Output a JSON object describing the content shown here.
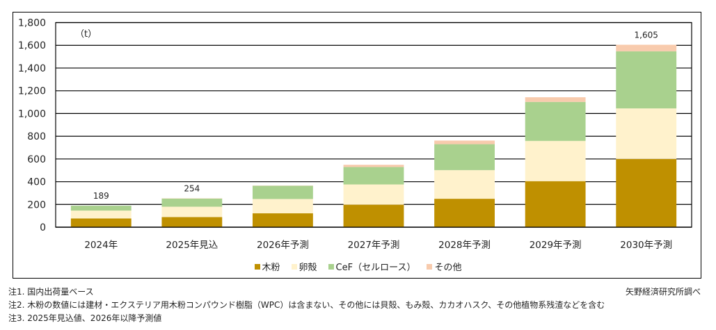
{
  "chart_data": {
    "type": "bar",
    "stacked": true,
    "unit_label": "（t）",
    "categories": [
      "2024年",
      "2025年見込",
      "2026年予測",
      "2027年予測",
      "2028年予測",
      "2029年予測",
      "2030年予測"
    ],
    "series": [
      {
        "name": "木粉",
        "color": "#BF9000",
        "values": [
          77,
          89,
          122,
          198,
          250,
          405,
          600
        ]
      },
      {
        "name": "卵殻",
        "color": "#FFF2CC",
        "values": [
          69,
          91,
          126,
          178,
          252,
          354,
          445
        ]
      },
      {
        "name": "CeF（セルロース）",
        "color": "#A9D18E",
        "values": [
          43,
          72,
          116,
          153,
          228,
          343,
          502
        ]
      },
      {
        "name": "その他",
        "color": "#F8CBAD",
        "values": [
          0,
          2,
          2,
          20,
          32,
          41,
          58
        ]
      }
    ],
    "total_labels": [
      {
        "index": 0,
        "text": "189"
      },
      {
        "index": 1,
        "text": "254"
      },
      {
        "index": 6,
        "text": "1,605"
      }
    ],
    "ylim": [
      0,
      1800
    ],
    "yticks": [
      0,
      200,
      400,
      600,
      800,
      1000,
      1200,
      1400,
      1600,
      1800
    ],
    "ytick_labels": [
      "0",
      "200",
      "400",
      "600",
      "800",
      "1,000",
      "1,200",
      "1,400",
      "1,600",
      "1,800"
    ],
    "grid": true,
    "legend_position": "bottom",
    "title": "",
    "xlabel": "",
    "ylabel": ""
  },
  "notes": [
    "注1. 国内出荷量ベース",
    "注2. 木粉の数値には建材・エクステリア用木粉コンパウンド樹脂（WPC）は含まない、その他には貝殻、もみ殻、カカオハスク、その他植物系残渣などを含む",
    "注3. 2025年見込値、2026年以降予測値"
  ],
  "source": "矢野経済研究所調べ"
}
